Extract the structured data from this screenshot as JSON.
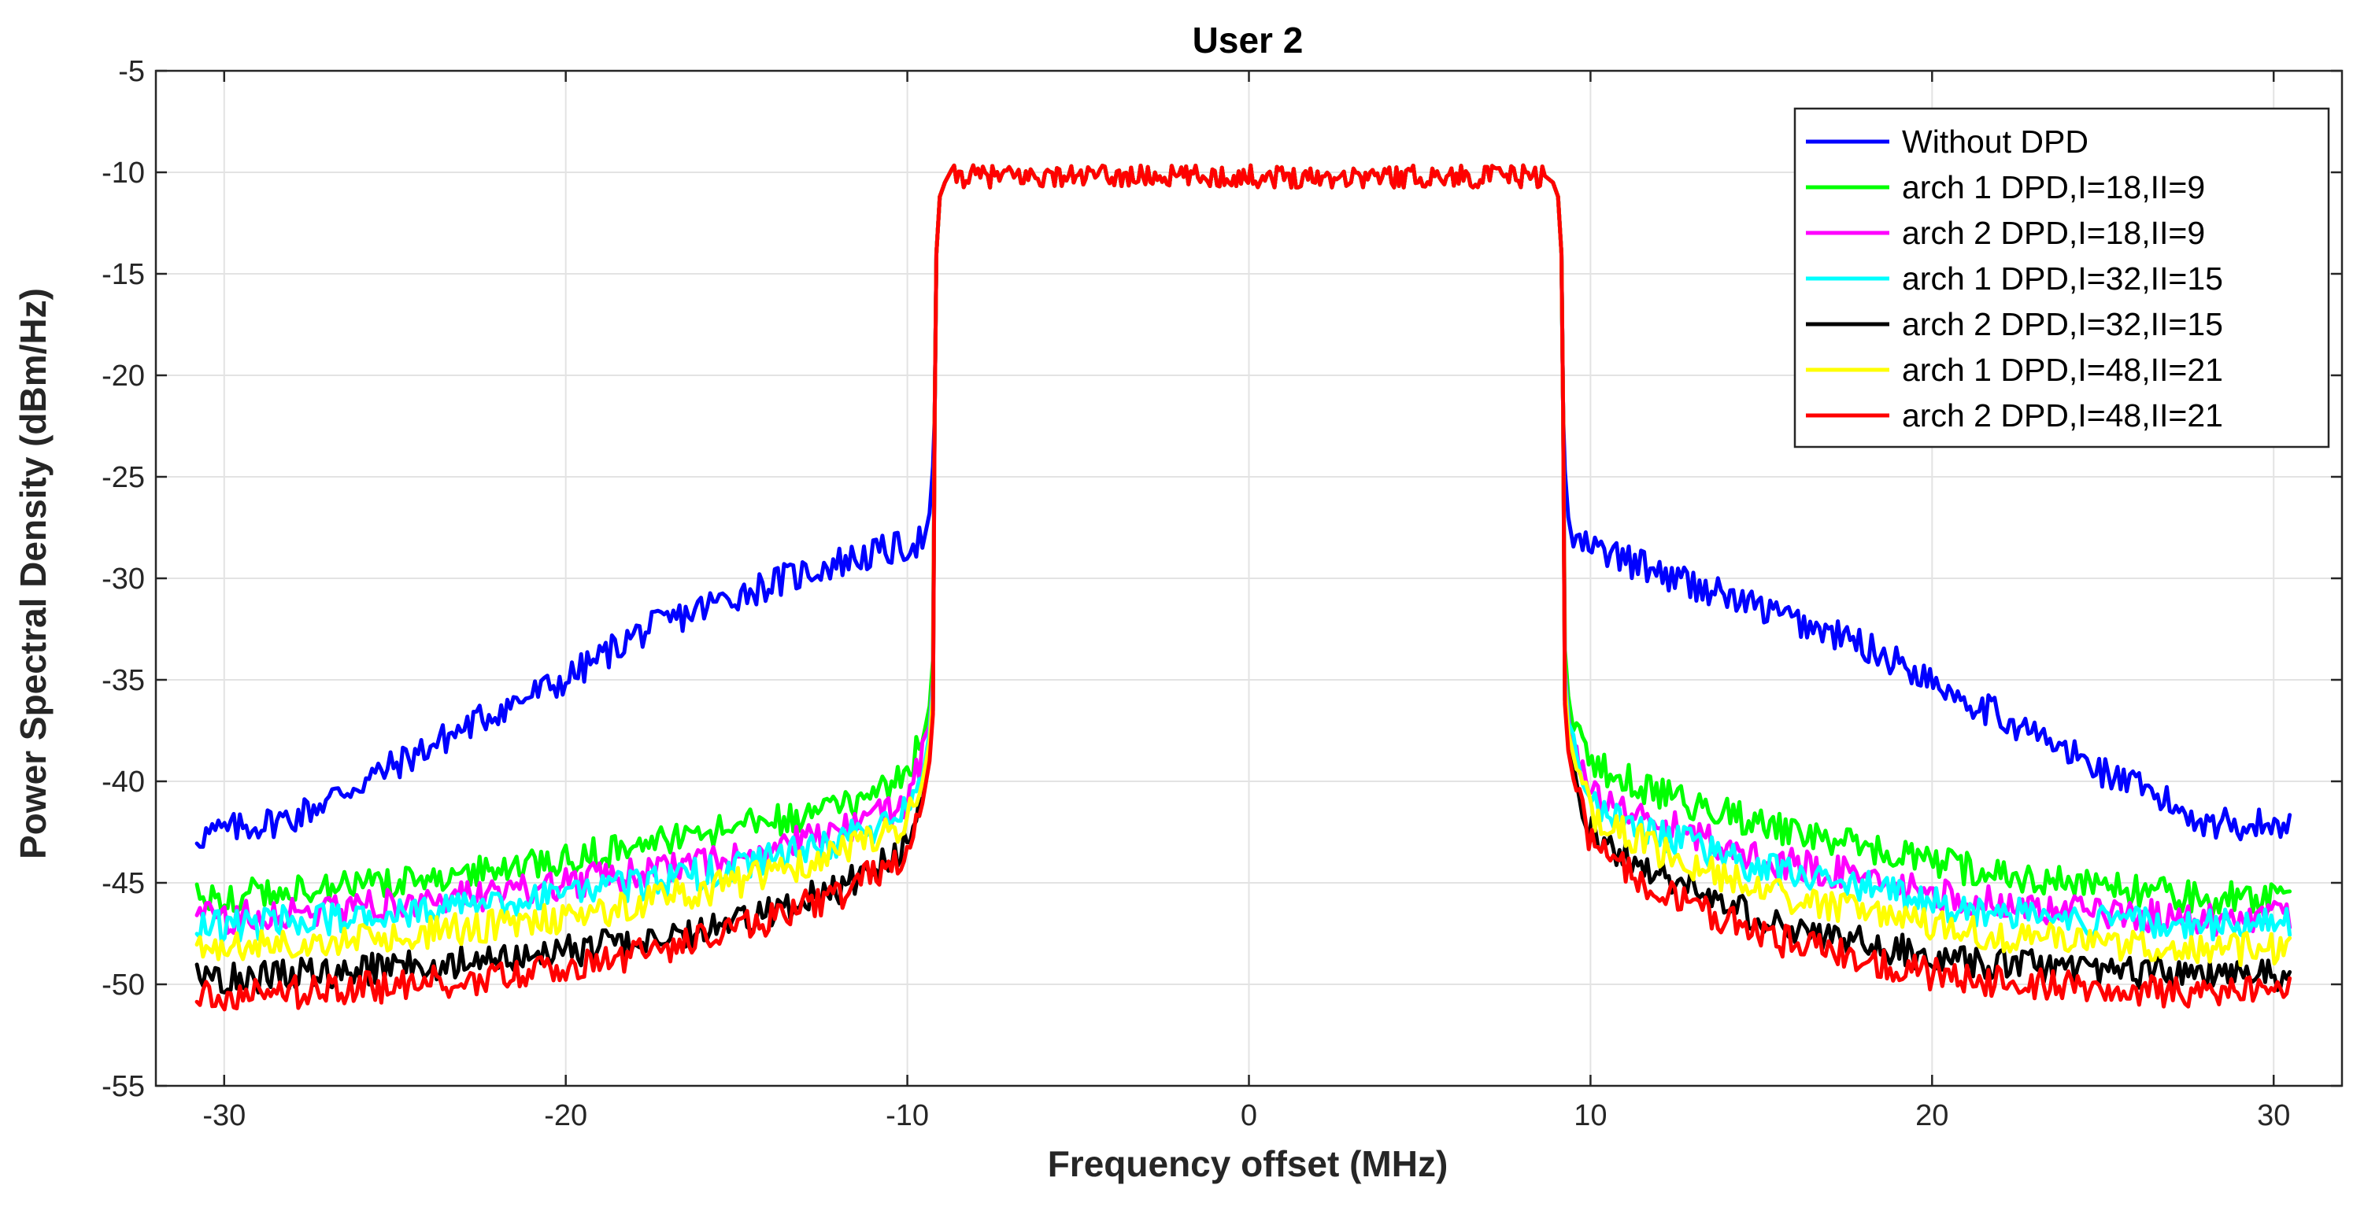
{
  "chart_data": {
    "type": "line",
    "title": "User 2",
    "xlabel": "Frequency offset (MHz)",
    "ylabel": "Power Spectral Density (dBm/Hz)",
    "xlim": [
      -32,
      32
    ],
    "ylim": [
      -55,
      -5
    ],
    "xticks": [
      -30,
      -20,
      -10,
      0,
      10,
      20,
      30
    ],
    "yticks": [
      -55,
      -50,
      -45,
      -40,
      -35,
      -30,
      -25,
      -20,
      -15,
      -10,
      -5
    ],
    "grid": true,
    "legend_position": "top-right",
    "passband": {
      "edge_mhz": 9.2,
      "level_dbm_hz": -10.2,
      "x_range": [
        -30.8,
        30.5
      ]
    },
    "series": [
      {
        "name": "Without DPD",
        "color": "#0000ff",
        "x": [
          -30.8,
          -28,
          -25,
          -22,
          -20,
          -18,
          -15,
          -12,
          -10,
          -9.5,
          9.5,
          10,
          12,
          15,
          18,
          20,
          22,
          25,
          28,
          30.5
        ],
        "values": [
          -42.7,
          -41.8,
          -39.2,
          -36.5,
          -35.0,
          -32.8,
          -30.8,
          -29.2,
          -28.4,
          -28.0,
          -28.2,
          -28.5,
          -29.7,
          -31.5,
          -33.3,
          -35.0,
          -36.8,
          -39.5,
          -42.0,
          -42.2
        ]
      },
      {
        "name": "arch 1 DPD,I=18,II=9",
        "color": "#00ff00",
        "x": [
          -30.8,
          -28,
          -25,
          -22,
          -20,
          -18,
          -15,
          -12,
          -10,
          -9.5,
          9.5,
          10,
          12,
          15,
          18,
          20,
          22,
          25,
          28,
          30.5
        ],
        "values": [
          -45.8,
          -45.4,
          -45.0,
          -44.3,
          -43.8,
          -43.2,
          -42.3,
          -41.3,
          -39.8,
          -37.5,
          -37.0,
          -39.2,
          -40.6,
          -42.1,
          -43.3,
          -44.0,
          -44.6,
          -45.2,
          -45.8,
          -45.6
        ]
      },
      {
        "name": "arch 2 DPD,I=18,II=9",
        "color": "#ff00ff",
        "x": [
          -30.8,
          -28,
          -25,
          -22,
          -20,
          -18,
          -15,
          -12,
          -10,
          -9.5,
          9.5,
          10,
          12,
          15,
          18,
          20,
          22,
          25,
          28,
          30.5
        ],
        "values": [
          -46.8,
          -46.5,
          -46.0,
          -45.5,
          -45.0,
          -44.5,
          -43.7,
          -42.5,
          -41.0,
          -38.5,
          -38.0,
          -40.5,
          -42.0,
          -43.8,
          -44.7,
          -45.5,
          -46.0,
          -46.5,
          -46.8,
          -46.5
        ]
      },
      {
        "name": "arch 1 DPD,I=32,II=15",
        "color": "#00ffff",
        "x": [
          -30.8,
          -28,
          -25,
          -22,
          -20,
          -18,
          -15,
          -12,
          -10,
          -9.5,
          9.5,
          10,
          12,
          15,
          18,
          20,
          22,
          25,
          28,
          30.5
        ],
        "values": [
          -47.2,
          -46.9,
          -46.5,
          -46.0,
          -45.6,
          -45.1,
          -44.2,
          -43.0,
          -41.5,
          -38.8,
          -38.3,
          -41.0,
          -42.6,
          -44.3,
          -45.2,
          -46.0,
          -46.5,
          -46.9,
          -47.1,
          -47.0
        ]
      },
      {
        "name": "arch 2 DPD,I=32,II=15",
        "color": "#000000",
        "x": [
          -30.8,
          -28,
          -25,
          -22,
          -20,
          -18,
          -15,
          -12,
          -10,
          -9.5,
          9.5,
          10,
          12,
          15,
          18,
          20,
          22,
          25,
          28,
          30.5
        ],
        "values": [
          -49.8,
          -49.5,
          -49.2,
          -48.8,
          -48.4,
          -47.9,
          -46.9,
          -45.3,
          -43.2,
          -40.0,
          -39.5,
          -42.5,
          -44.7,
          -46.8,
          -48.0,
          -48.6,
          -49.0,
          -49.3,
          -49.6,
          -49.5
        ]
      },
      {
        "name": "arch 1 DPD,I=48,II=21",
        "color": "#ffff00",
        "x": [
          -30.8,
          -28,
          -25,
          -22,
          -20,
          -18,
          -15,
          -12,
          -10,
          -9.5,
          9.5,
          10,
          12,
          15,
          18,
          20,
          22,
          25,
          28,
          30.5
        ],
        "values": [
          -48.3,
          -48.0,
          -47.6,
          -47.1,
          -46.7,
          -46.1,
          -45.0,
          -43.6,
          -42.0,
          -39.3,
          -38.8,
          -41.6,
          -43.4,
          -45.4,
          -46.4,
          -47.1,
          -47.6,
          -48.0,
          -48.3,
          -48.2
        ]
      },
      {
        "name": "arch 2 DPD,I=48,II=21",
        "color": "#ff0000",
        "x": [
          -30.8,
          -28,
          -25,
          -22,
          -20,
          -18,
          -15,
          -12,
          -10,
          -9.5,
          9.5,
          10,
          12,
          15,
          18,
          20,
          22,
          25,
          28,
          30.5
        ],
        "values": [
          -50.6,
          -50.4,
          -50.1,
          -49.6,
          -49.1,
          -48.5,
          -47.3,
          -45.6,
          -43.5,
          -40.2,
          -39.7,
          -42.9,
          -45.4,
          -47.6,
          -48.8,
          -49.5,
          -49.9,
          -50.2,
          -50.5,
          -50.4
        ]
      }
    ]
  }
}
